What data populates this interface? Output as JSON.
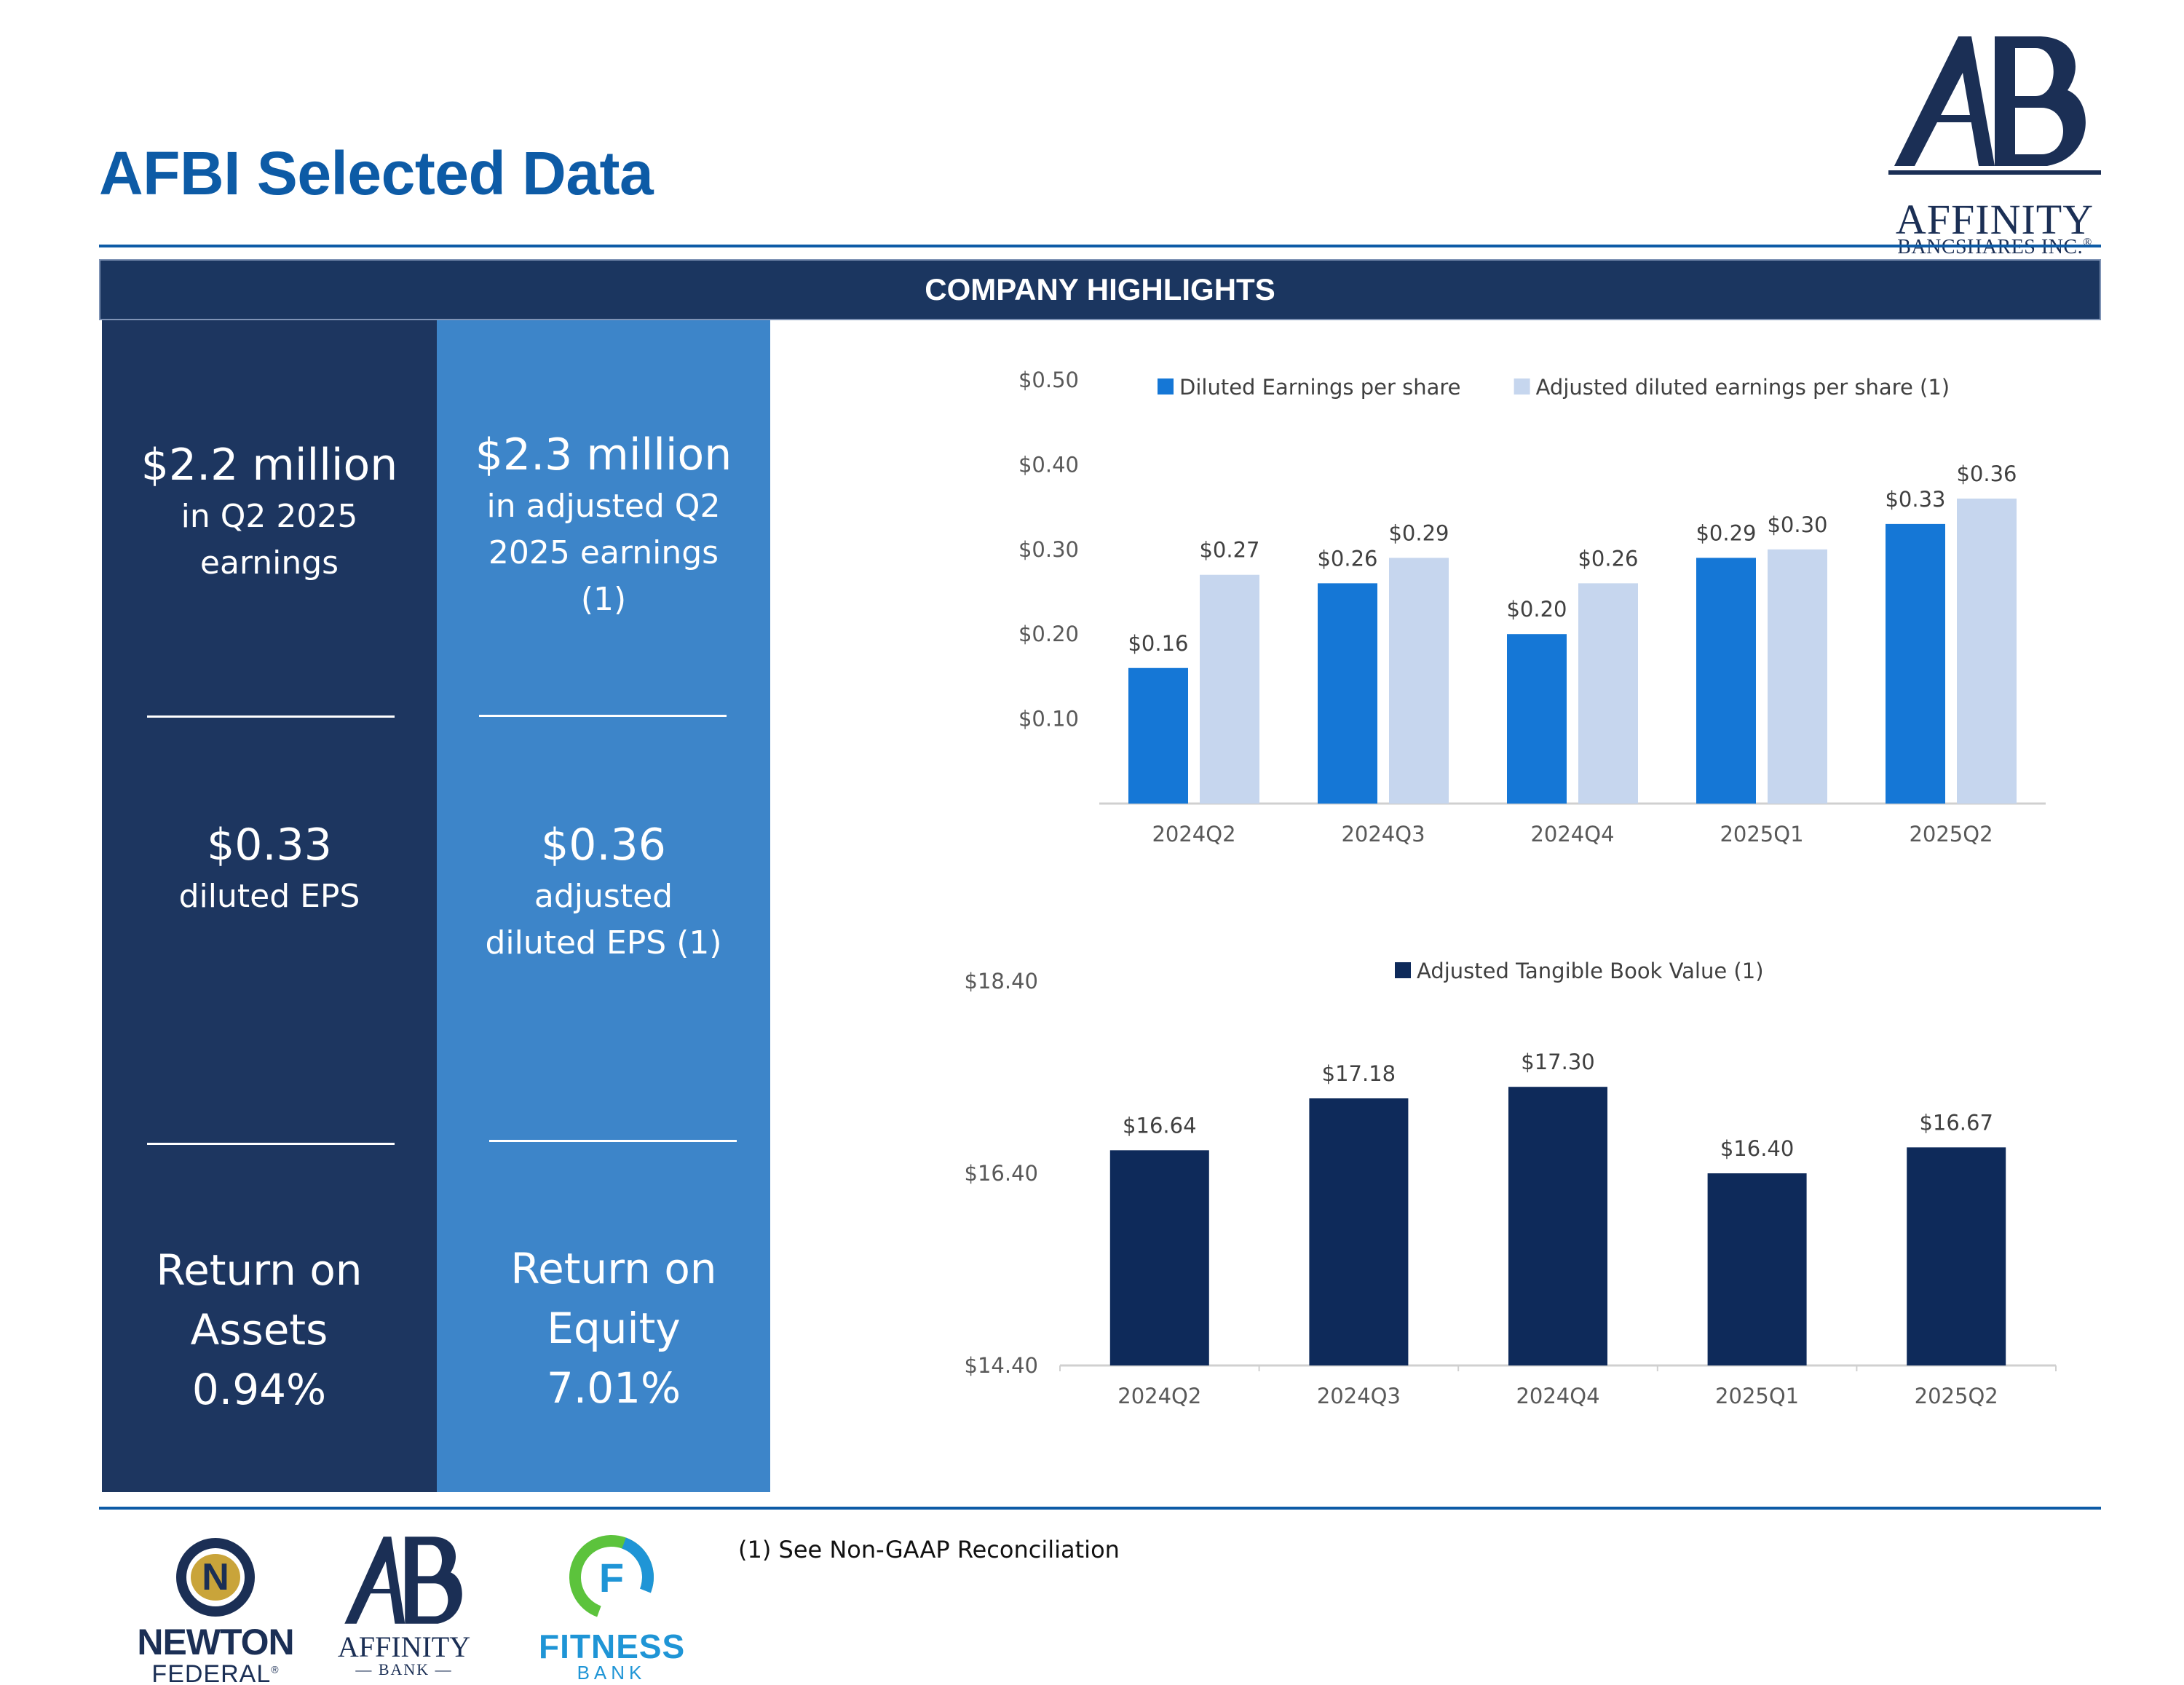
{
  "page": {
    "title": "AFBI Selected Data",
    "section_header": "COMPANY HIGHLIGHTS",
    "footnote": "(1) See Non-GAAP Reconciliation"
  },
  "brand": {
    "logo_name": "AFFINITY",
    "logo_sub": "BANCSHARES INC.",
    "registered": "®",
    "primary_color": "#0d5ba6",
    "navy": "#1b3660",
    "mid_blue": "#3d85c9"
  },
  "highlights": {
    "earnings": {
      "value": "$2.2 million",
      "line1": "in Q2 2025",
      "line2": "earnings"
    },
    "adj_earnings": {
      "value": "$2.3 million",
      "line1": "in adjusted Q2",
      "line2": "2025 earnings",
      "line3": "(1)"
    },
    "eps": {
      "value": "$0.33",
      "label": "diluted EPS"
    },
    "adj_eps": {
      "value": "$0.36",
      "line1": "adjusted",
      "line2": "diluted EPS (1)"
    },
    "roa": {
      "line1": "Return on",
      "line2": "Assets",
      "value": "0.94%"
    },
    "roe": {
      "line1": "Return on",
      "line2": "Equity",
      "value": "7.01%"
    }
  },
  "chart_data": [
    {
      "type": "bar",
      "categories": [
        "2024Q2",
        "2024Q3",
        "2024Q4",
        "2025Q1",
        "2025Q2"
      ],
      "series": [
        {
          "name": "Diluted Earnings per share",
          "values": [
            0.16,
            0.26,
            0.2,
            0.29,
            0.33
          ],
          "labels": [
            "$0.16",
            "$0.26",
            "$0.20",
            "$0.29",
            "$0.33"
          ],
          "color": "#1577d6"
        },
        {
          "name": "Adjusted diluted earnings per share (1)",
          "values": [
            0.27,
            0.29,
            0.26,
            0.3,
            0.36
          ],
          "labels": [
            "$0.27",
            "$0.29",
            "$0.26",
            "$0.30",
            "$0.36"
          ],
          "color": "#c6d6ee"
        }
      ],
      "yticks": [
        0.1,
        0.2,
        0.3,
        0.4,
        0.5
      ],
      "ytick_labels": [
        "$0.10",
        "$0.20",
        "$0.30",
        "$0.40",
        "$0.50"
      ],
      "ylim": [
        0,
        0.5
      ],
      "legend": "top"
    },
    {
      "type": "bar",
      "categories": [
        "2024Q2",
        "2024Q3",
        "2024Q4",
        "2025Q1",
        "2025Q2"
      ],
      "series": [
        {
          "name": "Adjusted Tangible Book Value (1)",
          "values": [
            16.64,
            17.18,
            17.3,
            16.4,
            16.67
          ],
          "labels": [
            "$16.64",
            "$17.18",
            "$17.30",
            "$16.40",
            "$16.67"
          ],
          "color": "#0e2a5a"
        }
      ],
      "yticks": [
        14.4,
        16.4,
        18.4
      ],
      "ytick_labels": [
        "$14.40",
        "$16.40",
        "$18.40"
      ],
      "ylim": [
        14.4,
        18.4
      ],
      "legend": "top"
    }
  ],
  "footer_logos": {
    "newton": {
      "glyph": "N",
      "name": "NEWTON",
      "sub": "FEDERAL"
    },
    "affinity_bank": {
      "name": "AFFINITY",
      "sub": "— BANK —"
    },
    "fitness": {
      "glyph": "F",
      "name": "FITNESS",
      "sub": "BANK"
    }
  }
}
